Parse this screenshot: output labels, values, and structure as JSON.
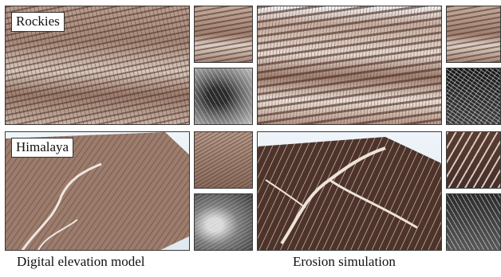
{
  "rows": [
    {
      "label": "Rockies"
    },
    {
      "label": "Himalaya"
    }
  ],
  "captions": {
    "left": "Digital elevation model",
    "right": "Erosion simulation"
  }
}
